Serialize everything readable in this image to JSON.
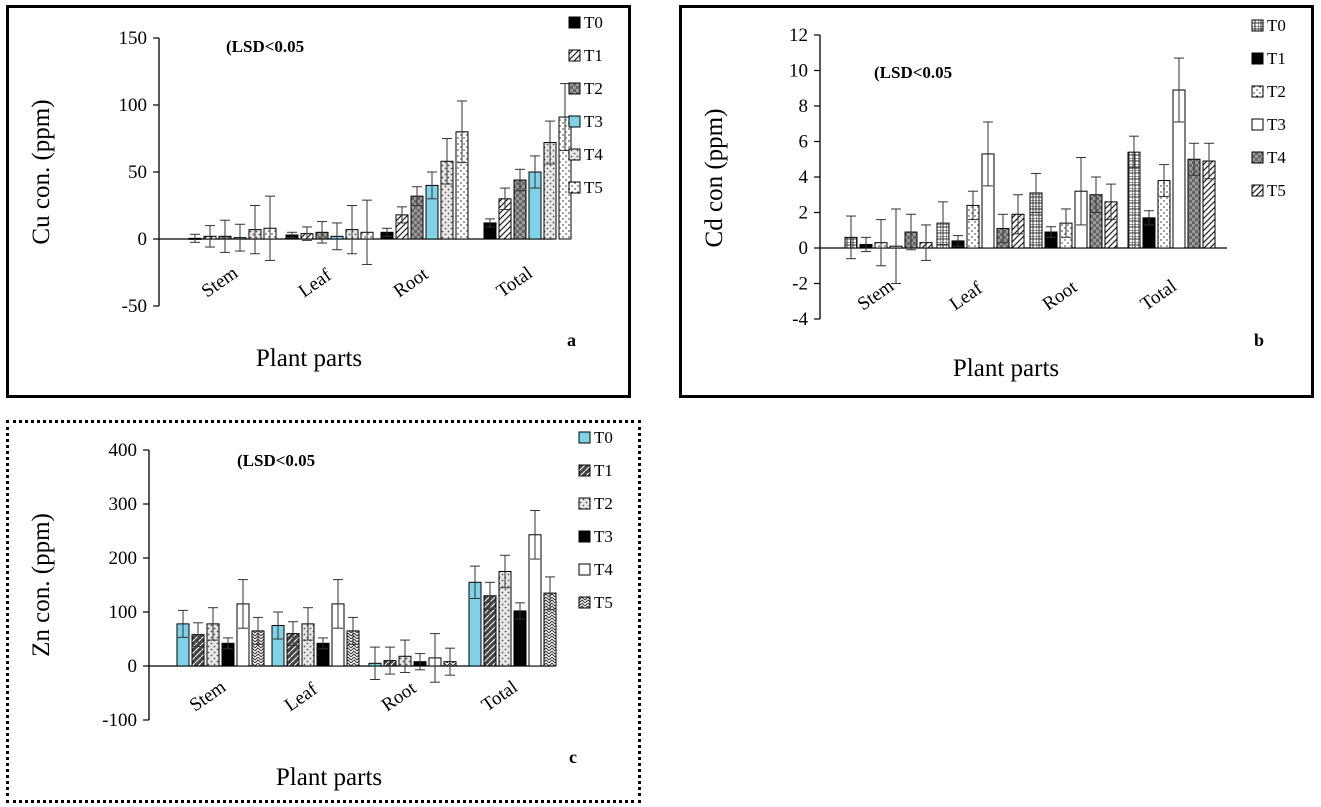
{
  "panels": [
    {
      "id": "a",
      "chart_data": {
        "type": "bar",
        "categories": [
          "Stem",
          "Leaf",
          "Root",
          "Total"
        ],
        "ylabel": "Cu con. (ppm)",
        "xlabel": "Plant parts",
        "ylim": [
          -50,
          150
        ],
        "yticks": [
          -50,
          0,
          50,
          100,
          150
        ],
        "annotation": "(LSD<0.05",
        "panel_letter": "a",
        "series": [
          {
            "name": "T0",
            "values": [
              0.5,
              3,
              5,
              12
            ],
            "errors": [
              3,
              2,
              3,
              3
            ]
          },
          {
            "name": "T1",
            "values": [
              2,
              4,
              18,
              30
            ],
            "errors": [
              8,
              5,
              6,
              8
            ]
          },
          {
            "name": "T2",
            "values": [
              2,
              5,
              32,
              44
            ],
            "errors": [
              12,
              8,
              7,
              8
            ]
          },
          {
            "name": "T3",
            "values": [
              1,
              2,
              40,
              50
            ],
            "errors": [
              10,
              10,
              10,
              12
            ]
          },
          {
            "name": "T4",
            "values": [
              7,
              7,
              58,
              72
            ],
            "errors": [
              18,
              18,
              17,
              16
            ]
          },
          {
            "name": "T5",
            "values": [
              8,
              5,
              80,
              91
            ],
            "errors": [
              24,
              24,
              23,
              25
            ]
          }
        ],
        "colors": {
          "T0": "#000000",
          "T1": "#ffffff",
          "T2": "#707070",
          "T3": "#7fd3e8",
          "T4": "#e4e4e4",
          "T5": "#ffffff"
        }
      }
    },
    {
      "id": "b",
      "chart_data": {
        "type": "bar",
        "categories": [
          "Stem",
          "Leaf",
          "Root",
          "Total"
        ],
        "ylabel": "Cd con (ppm)",
        "xlabel": "Plant parts",
        "ylim": [
          -4,
          12
        ],
        "yticks": [
          -4,
          -2,
          0,
          2,
          4,
          6,
          8,
          10,
          12
        ],
        "annotation": "(LSD<0.05",
        "panel_letter": "b",
        "series": [
          {
            "name": "T0",
            "values": [
              0.6,
              1.4,
              3.1,
              5.4
            ],
            "errors": [
              1.2,
              1.2,
              1.1,
              0.9
            ]
          },
          {
            "name": "T1",
            "values": [
              0.2,
              0.4,
              0.9,
              1.7
            ],
            "errors": [
              0.4,
              0.3,
              0.3,
              0.4
            ]
          },
          {
            "name": "T2",
            "values": [
              0.3,
              2.4,
              1.4,
              3.8
            ],
            "errors": [
              1.3,
              0.8,
              0.8,
              0.9
            ]
          },
          {
            "name": "T3",
            "values": [
              0.1,
              5.3,
              3.2,
              8.9
            ],
            "errors": [
              2.1,
              1.8,
              1.9,
              1.8
            ]
          },
          {
            "name": "T4",
            "values": [
              0.9,
              1.1,
              3.0,
              5.0
            ],
            "errors": [
              1.0,
              0.8,
              1.0,
              0.9
            ]
          },
          {
            "name": "T5",
            "values": [
              0.3,
              1.9,
              2.6,
              4.9
            ],
            "errors": [
              1.0,
              1.1,
              1.0,
              1.0
            ]
          }
        ],
        "colors": {
          "T0": "#d8d8d8",
          "T1": "#000000",
          "T2": "#ffffff",
          "T3": "#ffffff",
          "T4": "#707070",
          "T5": "#a8a8a8"
        }
      }
    },
    {
      "id": "c",
      "chart_data": {
        "type": "bar",
        "categories": [
          "Stem",
          "Leaf",
          "Root",
          "Total"
        ],
        "ylabel": "Zn con. (ppm)",
        "xlabel": "Plant parts",
        "ylim": [
          -100,
          400
        ],
        "yticks": [
          -100,
          0,
          100,
          200,
          300,
          400
        ],
        "annotation": "(LSD<0.05",
        "panel_letter": "c",
        "series": [
          {
            "name": "T0",
            "values": [
              78,
              75,
              5,
              155
            ],
            "errors": [
              25,
              25,
              30,
              30
            ]
          },
          {
            "name": "T1",
            "values": [
              58,
              60,
              10,
              130
            ],
            "errors": [
              22,
              22,
              25,
              25
            ]
          },
          {
            "name": "T2",
            "values": [
              78,
              78,
              18,
              175
            ],
            "errors": [
              30,
              30,
              30,
              30
            ]
          },
          {
            "name": "T3",
            "values": [
              42,
              42,
              8,
              102
            ],
            "errors": [
              10,
              10,
              15,
              15
            ]
          },
          {
            "name": "T4",
            "values": [
              115,
              115,
              15,
              243
            ],
            "errors": [
              45,
              45,
              45,
              45
            ]
          },
          {
            "name": "T5",
            "values": [
              65,
              65,
              8,
              135
            ],
            "errors": [
              25,
              25,
              25,
              30
            ]
          }
        ],
        "colors": {
          "T0": "#7fd3e8",
          "T1": "#555555",
          "T2": "#e4e4e4",
          "T3": "#000000",
          "T4": "#ffffff",
          "T5": "#3a3a3a"
        }
      }
    }
  ]
}
